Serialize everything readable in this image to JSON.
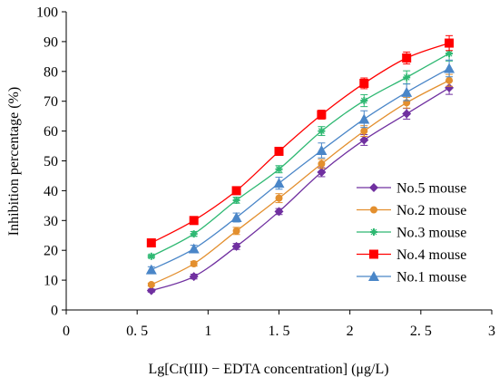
{
  "chart_data": {
    "type": "line",
    "title": "",
    "xlabel": "Lg[Cr(III) − EDTA concentration] (μg/L)",
    "ylabel": "Inhibition percentage (%)",
    "xlim": [
      0,
      3
    ],
    "ylim": [
      0,
      100
    ],
    "x_ticks": [
      0,
      0.5,
      1,
      1.5,
      2,
      2.5,
      3
    ],
    "x_tick_labels": [
      "0",
      "0. 5",
      "1",
      "1. 5",
      "2",
      "2. 5",
      "3"
    ],
    "y_ticks": [
      0,
      10,
      20,
      30,
      40,
      50,
      60,
      70,
      80,
      90,
      100
    ],
    "y_tick_labels": [
      "0",
      "10",
      "20",
      "30",
      "40",
      "50",
      "60",
      "70",
      "80",
      "90",
      "100"
    ],
    "grid": false,
    "legend_position": "bottom-right",
    "x": [
      0.6,
      0.9,
      1.2,
      1.5,
      1.8,
      2.1,
      2.4,
      2.7
    ],
    "series": [
      {
        "name": "No.5 mouse",
        "color": "#7030A0",
        "marker": "diamond",
        "values": [
          6.5,
          11.2,
          21.3,
          33.0,
          46.2,
          57.0,
          65.8,
          74.5
        ],
        "errors": [
          0.5,
          0.8,
          1.0,
          1.0,
          1.5,
          1.8,
          1.8,
          2.2
        ]
      },
      {
        "name": "No.2 mouse",
        "color": "#E38F2E",
        "marker": "circle",
        "values": [
          8.5,
          15.5,
          26.5,
          37.5,
          49.0,
          60.0,
          69.5,
          77.0
        ],
        "errors": [
          0.5,
          0.8,
          1.2,
          1.5,
          1.5,
          1.8,
          1.8,
          2.0
        ]
      },
      {
        "name": "No.3 mouse",
        "color": "#2EB872",
        "marker": "star",
        "values": [
          18.0,
          25.5,
          36.8,
          47.2,
          60.0,
          70.2,
          78.0,
          86.0
        ],
        "errors": [
          0.5,
          0.8,
          1.0,
          1.2,
          1.5,
          2.0,
          2.2,
          2.5
        ]
      },
      {
        "name": "No.4 mouse",
        "color": "#FF0000",
        "marker": "square",
        "values": [
          22.5,
          30.0,
          40.0,
          53.2,
          65.5,
          76.0,
          84.5,
          89.5
        ],
        "errors": [
          0.5,
          0.5,
          0.8,
          1.0,
          1.5,
          1.8,
          2.0,
          2.5
        ]
      },
      {
        "name": "No.1 mouse",
        "color": "#4A86C8",
        "marker": "triangle",
        "values": [
          13.5,
          20.5,
          31.0,
          42.5,
          53.5,
          64.0,
          73.0,
          81.0
        ],
        "errors": [
          1.0,
          1.2,
          1.5,
          2.0,
          2.5,
          2.8,
          2.8,
          2.8
        ]
      }
    ]
  }
}
